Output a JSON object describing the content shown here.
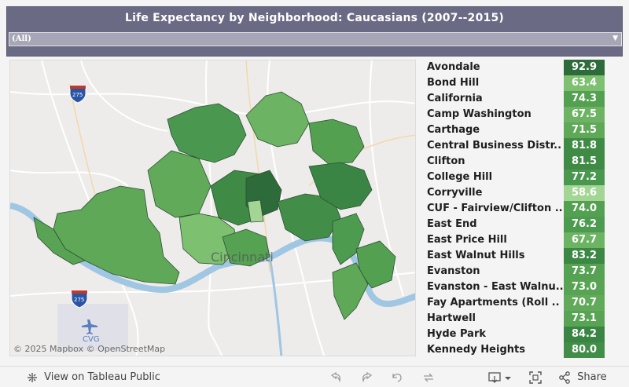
{
  "header": {
    "title": "Life Expectancy by Neighborhood: Caucasians (2007--2015)",
    "filter_value": "(All)",
    "filter_arrow": "▼"
  },
  "map": {
    "attribution": "© 2025 Mapbox © OpenStreetMap",
    "city_label": "Cincinnati",
    "airport_label": "CVG",
    "shields": [
      "275",
      "275"
    ]
  },
  "neighborhoods": [
    {
      "name": "Avondale",
      "value": "92.9",
      "color": "#2d6b3a"
    },
    {
      "name": "Bond Hill",
      "value": "63.4",
      "color": "#7cc070"
    },
    {
      "name": "California",
      "value": "74.3",
      "color": "#53a050"
    },
    {
      "name": "Camp Washington",
      "value": "67.5",
      "color": "#6cb363"
    },
    {
      "name": "Carthage",
      "value": "71.5",
      "color": "#5ea858"
    },
    {
      "name": "Central Business Distr..",
      "value": "81.8",
      "color": "#3f8a45"
    },
    {
      "name": "Clifton",
      "value": "81.5",
      "color": "#3f8a45"
    },
    {
      "name": "College Hill",
      "value": "77.2",
      "color": "#4a9850"
    },
    {
      "name": "Corryville",
      "value": "58.6",
      "color": "#a3d694"
    },
    {
      "name": "CUF - Fairview/Clifton ..",
      "value": "74.0",
      "color": "#53a050"
    },
    {
      "name": "East End",
      "value": "76.2",
      "color": "#4d9b4f"
    },
    {
      "name": "East Price Hill",
      "value": "67.7",
      "color": "#6cb363"
    },
    {
      "name": "East Walnut Hills",
      "value": "83.2",
      "color": "#3c8744"
    },
    {
      "name": "Evanston",
      "value": "73.7",
      "color": "#55a252"
    },
    {
      "name": "Evanston - East Walnu..",
      "value": "73.0",
      "color": "#58a454"
    },
    {
      "name": "Fay Apartments (Roll ..",
      "value": "70.7",
      "color": "#60aa5a"
    },
    {
      "name": "Hartwell",
      "value": "73.1",
      "color": "#58a454"
    },
    {
      "name": "Hyde Park",
      "value": "84.2",
      "color": "#3a8543"
    },
    {
      "name": "Kennedy Heights",
      "value": "80.0",
      "color": "#428d48"
    }
  ],
  "toolbar": {
    "view_label": "View on Tableau Public",
    "share_label": "Share"
  },
  "icons": [
    "tableau-logo-icon",
    "undo-icon",
    "redo-icon",
    "revert-icon",
    "refresh-icon",
    "download-icon",
    "fullscreen-icon",
    "share-icon"
  ]
}
